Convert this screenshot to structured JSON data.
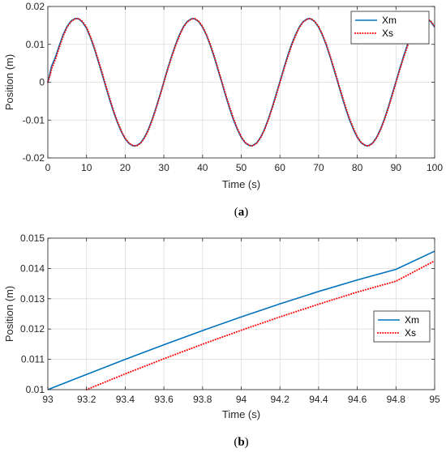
{
  "chart_data": [
    {
      "type": "line",
      "caption_pre": "(",
      "caption_letter": "a",
      "caption_post": ")",
      "xlabel": "Time (s)",
      "ylabel": "Position (m)",
      "xlim": [
        0,
        100
      ],
      "ylim": [
        -0.02,
        0.02
      ],
      "xticks": [
        0,
        10,
        20,
        30,
        40,
        50,
        60,
        70,
        80,
        90,
        100
      ],
      "yticks": [
        -0.02,
        -0.01,
        0,
        0.01,
        0.02
      ],
      "xticklabels": [
        "0",
        "10",
        "20",
        "30",
        "40",
        "50",
        "60",
        "70",
        "80",
        "90",
        "100"
      ],
      "yticklabels": [
        "-0.02",
        "-0.01",
        "0",
        "0.01",
        "0.02"
      ],
      "grid": true,
      "legend": "top-right",
      "series": [
        {
          "name": "Xm",
          "color": "#0072BD",
          "style": "solid",
          "x": [
            0,
            0.5,
            1,
            1.5,
            2,
            3,
            4,
            5,
            6,
            7,
            7.5,
            8,
            9,
            10,
            11,
            12,
            13,
            14,
            15,
            16,
            17,
            18,
            19,
            20,
            21,
            22,
            22.5,
            23,
            24,
            25,
            26,
            27,
            28,
            29,
            30,
            31,
            32,
            33,
            34,
            35,
            36,
            37,
            37.5,
            38,
            39,
            40,
            41,
            42,
            43,
            44,
            45,
            46,
            47,
            48,
            49,
            50,
            51,
            52,
            52.5,
            53,
            54,
            55,
            56,
            57,
            58,
            59,
            60,
            61,
            62,
            63,
            64,
            65,
            66,
            67,
            67.5,
            68,
            69,
            70,
            71,
            72,
            73,
            74,
            75,
            76,
            77,
            78,
            79,
            80,
            81,
            82,
            82.5,
            83,
            84,
            85,
            86,
            87,
            88,
            89,
            90,
            91,
            92,
            93,
            94,
            95,
            96,
            97,
            97.5,
            98,
            99,
            100
          ],
          "y": [
            0,
            0.0022,
            0.0044,
            0.0055,
            0.0068,
            0.0098,
            0.0127,
            0.0148,
            0.0162,
            0.0168,
            0.0168,
            0.0167,
            0.0158,
            0.0142,
            0.0118,
            0.0089,
            0.0056,
            0.0022,
            -0.0013,
            -0.0047,
            -0.0079,
            -0.0107,
            -0.0131,
            -0.015,
            -0.0162,
            -0.0168,
            -0.0168,
            -0.0167,
            -0.016,
            -0.0145,
            -0.0124,
            -0.0097,
            -0.0066,
            -0.0033,
            0.0002,
            0.0037,
            0.0069,
            0.0099,
            0.0125,
            0.0146,
            0.016,
            0.0167,
            0.0168,
            0.0167,
            0.016,
            0.0145,
            0.0124,
            0.0097,
            0.0066,
            0.0032,
            -0.0002,
            -0.0037,
            -0.007,
            -0.01,
            -0.0125,
            -0.0146,
            -0.016,
            -0.0167,
            -0.0168,
            -0.0167,
            -0.016,
            -0.0145,
            -0.0124,
            -0.0097,
            -0.0066,
            -0.0032,
            0.0002,
            0.0037,
            0.007,
            0.01,
            0.0125,
            0.0146,
            0.016,
            0.0167,
            0.0168,
            0.0167,
            0.016,
            0.0145,
            0.0124,
            0.0097,
            0.0066,
            0.0032,
            -0.0002,
            -0.0037,
            -0.007,
            -0.01,
            -0.0125,
            -0.0146,
            -0.016,
            -0.0167,
            -0.0168,
            -0.0167,
            -0.016,
            -0.0145,
            -0.0124,
            -0.0097,
            -0.0066,
            -0.0032,
            0.0002,
            0.0037,
            0.007,
            0.01,
            0.0125,
            0.0146,
            0.016,
            0.0167,
            0.0168,
            0.0167,
            0.016,
            0.0145
          ]
        },
        {
          "name": "Xs",
          "color": "#FF0000",
          "style": "dotted",
          "x": [
            0,
            0.5,
            1,
            1.5,
            2,
            3,
            4,
            5,
            6,
            7,
            7.7,
            8,
            9,
            10,
            11,
            12,
            13,
            14,
            15,
            16,
            17,
            18,
            19,
            20,
            21,
            22,
            22.7,
            23,
            24,
            25,
            26,
            27,
            28,
            29,
            30,
            31,
            32,
            33,
            34,
            35,
            36,
            37,
            37.7,
            38,
            39,
            40,
            41,
            42,
            43,
            44,
            45,
            46,
            47,
            48,
            49,
            50,
            51,
            52,
            52.7,
            53,
            54,
            55,
            56,
            57,
            58,
            59,
            60,
            61,
            62,
            63,
            64,
            65,
            66,
            67,
            67.7,
            68,
            69,
            70,
            71,
            72,
            73,
            74,
            75,
            76,
            77,
            78,
            79,
            80,
            81,
            82,
            82.7,
            83,
            84,
            85,
            86,
            87,
            88,
            89,
            90,
            91,
            92,
            93,
            94,
            95,
            96,
            97,
            97.7,
            98,
            99,
            100
          ],
          "y": [
            0,
            0.0016,
            0.0036,
            0.0049,
            0.0062,
            0.0093,
            0.0123,
            0.0146,
            0.016,
            0.0167,
            0.0168,
            0.0168,
            0.016,
            0.0145,
            0.0121,
            0.0093,
            0.006,
            0.0026,
            -0.0009,
            -0.0043,
            -0.0076,
            -0.0104,
            -0.0129,
            -0.0148,
            -0.0161,
            -0.0167,
            -0.0168,
            -0.0168,
            -0.0161,
            -0.0147,
            -0.0127,
            -0.01,
            -0.0069,
            -0.0036,
            -0.0001,
            0.0034,
            0.0066,
            0.0096,
            0.0122,
            0.0144,
            0.0159,
            0.0166,
            0.0168,
            0.0168,
            0.0161,
            0.0147,
            0.0126,
            0.01,
            0.0069,
            0.0036,
            0.0001,
            -0.0033,
            -0.0066,
            -0.0096,
            -0.0122,
            -0.0144,
            -0.0159,
            -0.0166,
            -0.0168,
            -0.0168,
            -0.0161,
            -0.0147,
            -0.0126,
            -0.01,
            -0.0069,
            -0.0036,
            -0.0001,
            0.0033,
            0.0066,
            0.0096,
            0.0122,
            0.0144,
            0.0159,
            0.0166,
            0.0168,
            0.0168,
            0.0161,
            0.0147,
            0.0126,
            0.01,
            0.0069,
            0.0036,
            0.0001,
            -0.0033,
            -0.0066,
            -0.0096,
            -0.0122,
            -0.0144,
            -0.0159,
            -0.0166,
            -0.0168,
            -0.0168,
            -0.0161,
            -0.0147,
            -0.0126,
            -0.01,
            -0.0069,
            -0.0036,
            -0.0001,
            0.0033,
            0.0066,
            0.0096,
            0.0122,
            0.0144,
            0.0159,
            0.0166,
            0.0168,
            0.0168,
            0.0161,
            0.0148
          ]
        }
      ]
    },
    {
      "type": "line",
      "caption_pre": "(",
      "caption_letter": "b",
      "caption_post": ")",
      "xlabel": "Time (s)",
      "ylabel": "Position (m)",
      "xlim": [
        93,
        95
      ],
      "ylim": [
        0.01,
        0.015
      ],
      "xticks": [
        93,
        93.2,
        93.4,
        93.6,
        93.8,
        94,
        94.2,
        94.4,
        94.6,
        94.8,
        95
      ],
      "yticks": [
        0.01,
        0.011,
        0.012,
        0.013,
        0.014,
        0.015
      ],
      "xticklabels": [
        "93",
        "93.2",
        "93.4",
        "93.6",
        "93.8",
        "94",
        "94.2",
        "94.4",
        "94.6",
        "94.8",
        "95"
      ],
      "yticklabels": [
        "0.01",
        "0.011",
        "0.012",
        "0.013",
        "0.014",
        "0.015"
      ],
      "grid": true,
      "legend": "right",
      "series": [
        {
          "name": "Xm",
          "color": "#0072BD",
          "style": "solid",
          "x": [
            93,
            93.2,
            93.4,
            93.6,
            93.8,
            94,
            94.2,
            94.4,
            94.6,
            94.8,
            95
          ],
          "y": [
            0.01,
            0.0105,
            0.011,
            0.01148,
            0.01195,
            0.0124,
            0.01283,
            0.01324,
            0.01362,
            0.01397,
            0.01457
          ]
        },
        {
          "name": "Xs",
          "color": "#FF0000",
          "style": "dotted",
          "x": [
            93.2,
            93.4,
            93.6,
            93.8,
            94,
            94.2,
            94.4,
            94.6,
            94.8,
            95
          ],
          "y": [
            0.01,
            0.01052,
            0.01102,
            0.0115,
            0.01196,
            0.0124,
            0.01282,
            0.01322,
            0.01358,
            0.01425
          ]
        }
      ]
    }
  ]
}
